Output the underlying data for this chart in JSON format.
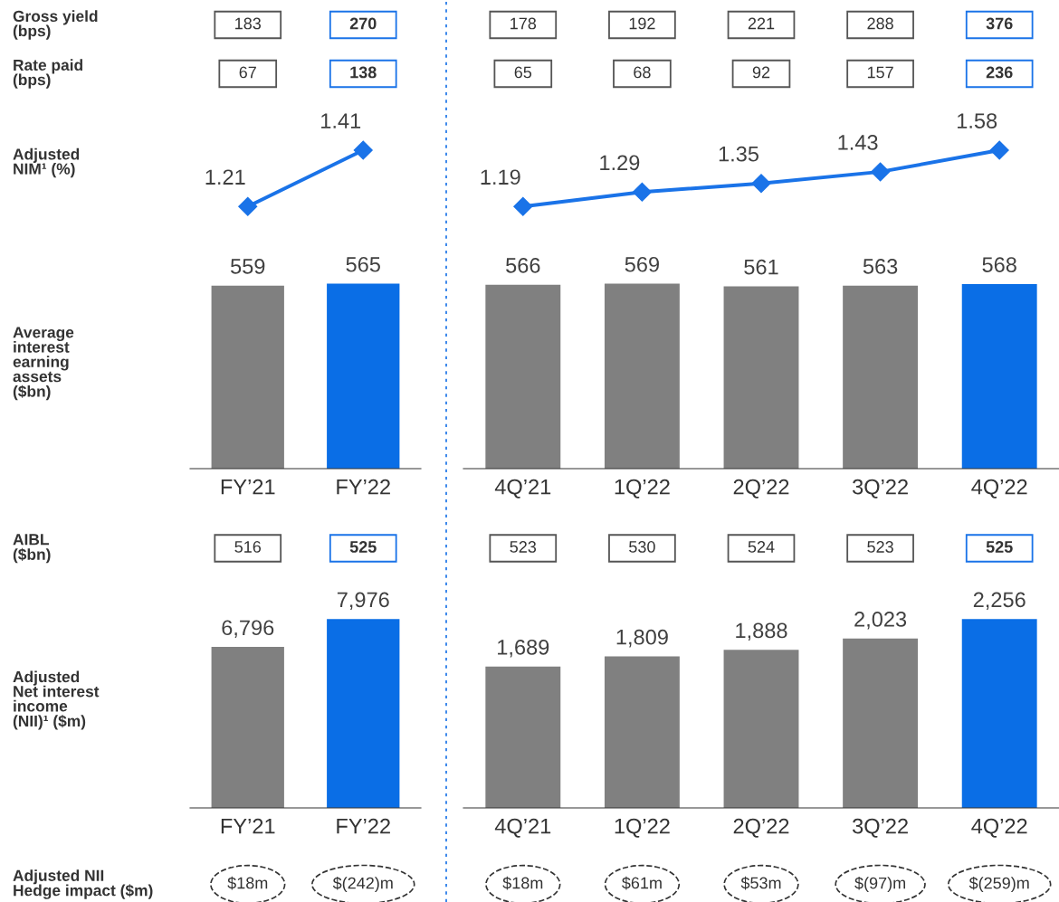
{
  "chart_data": [
    {
      "type": "other",
      "title": "Gross yield\n(bps)",
      "annotations": [
        "183",
        "270",
        "178",
        "192",
        "221",
        "288",
        "376"
      ]
    },
    {
      "type": "other",
      "title": "Rate paid\n(bps)",
      "annotations": [
        "67",
        "138",
        "65",
        "68",
        "92",
        "157",
        "236"
      ]
    },
    {
      "type": "line",
      "ylabel": "Adjusted\nNIM¹ (%)",
      "categories": [
        null,
        null
      ],
      "series": [
        {
          "color": "#1a73e8",
          "values": [
            1.21,
            1.41
          ]
        }
      ],
      "marker": "diamond",
      "data_labels": true
    },
    {
      "type": "line",
      "categories": [
        null,
        null,
        null,
        null,
        null
      ],
      "series": [
        {
          "color": "#1a73e8",
          "values": [
            1.19,
            1.29,
            1.35,
            1.43,
            1.58
          ]
        }
      ],
      "marker": "diamond",
      "data_labels": true
    },
    {
      "type": "bar",
      "ylabel": "Average\ninterest\nearning\nassets\n($bn)",
      "categories": [
        "FY’21",
        "FY’22"
      ],
      "values": [
        559,
        565
      ],
      "colors": [
        "#808080",
        "#0a6ee6"
      ],
      "data_labels": true
    },
    {
      "type": "bar",
      "categories": [
        "4Q’21",
        "1Q’22",
        "2Q’22",
        "3Q’22",
        "4Q’22"
      ],
      "values": [
        566,
        569,
        561,
        563,
        568
      ],
      "colors": [
        "#808080",
        "#808080",
        "#808080",
        "#808080",
        "#0a6ee6"
      ],
      "data_labels": true
    },
    {
      "type": "other",
      "title": "AIBL\n($bn)",
      "annotations": [
        "516",
        "525",
        "523",
        "530",
        "524",
        "523",
        "525"
      ]
    },
    {
      "type": "bar",
      "ylabel": "Adjusted\nNet interest\nincome\n(NII)¹ ($m)",
      "categories": [
        "FY’21",
        "FY’22"
      ],
      "values": [
        6796,
        7976
      ],
      "value_labels": [
        "6,796",
        "7,976"
      ],
      "colors": [
        "#808080",
        "#0a6ee6"
      ]
    },
    {
      "type": "bar",
      "categories": [
        "4Q’21",
        "1Q’22",
        "2Q’22",
        "3Q’22",
        "4Q’22"
      ],
      "values": [
        1689,
        1809,
        1888,
        2023,
        2256
      ],
      "value_labels": [
        "1,689",
        "1,809",
        "1,888",
        "2,023",
        "2,256"
      ],
      "colors": [
        "#808080",
        "#808080",
        "#808080",
        "#808080",
        "#0a6ee6"
      ]
    },
    {
      "type": "other",
      "title": "Adjusted NII\nHedge impact ($m)",
      "annotations": [
        "$18m",
        "$(242)m",
        "$18m",
        "$61m",
        "$53m",
        "$(97)m",
        "$(259)m"
      ]
    }
  ]
}
